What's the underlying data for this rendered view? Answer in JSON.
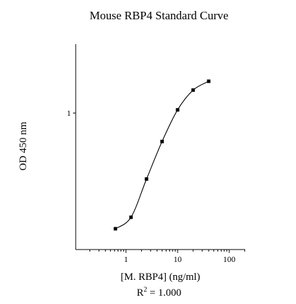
{
  "chart_data": {
    "type": "line",
    "title": "Mouse RBP4 Standard Curve",
    "xlabel": "[M. RBP4] (ng/ml)",
    "ylabel": "OD 450 nm",
    "xscale": "log",
    "yscale": "log",
    "xlim": [
      0.1,
      100
    ],
    "ylim": [
      0.05,
      2.5
    ],
    "x_ticks": [
      {
        "value": 1,
        "label": "1"
      },
      {
        "value": 10,
        "label": "10"
      },
      {
        "value": 100,
        "label": "100"
      }
    ],
    "y_ticks": [
      {
        "value": 1,
        "label": "1"
      }
    ],
    "grid": false,
    "legend": "none",
    "series": [
      {
        "x": [
          0.625,
          1.25,
          2.5,
          5,
          10,
          20,
          40
        ],
        "y": [
          0.088,
          0.112,
          0.25,
          0.55,
          1.07,
          1.62,
          1.95
        ]
      }
    ],
    "annotation": {
      "r2_prefix": "R",
      "r2_sup": "2",
      "r2_value": " = 1.000"
    }
  }
}
